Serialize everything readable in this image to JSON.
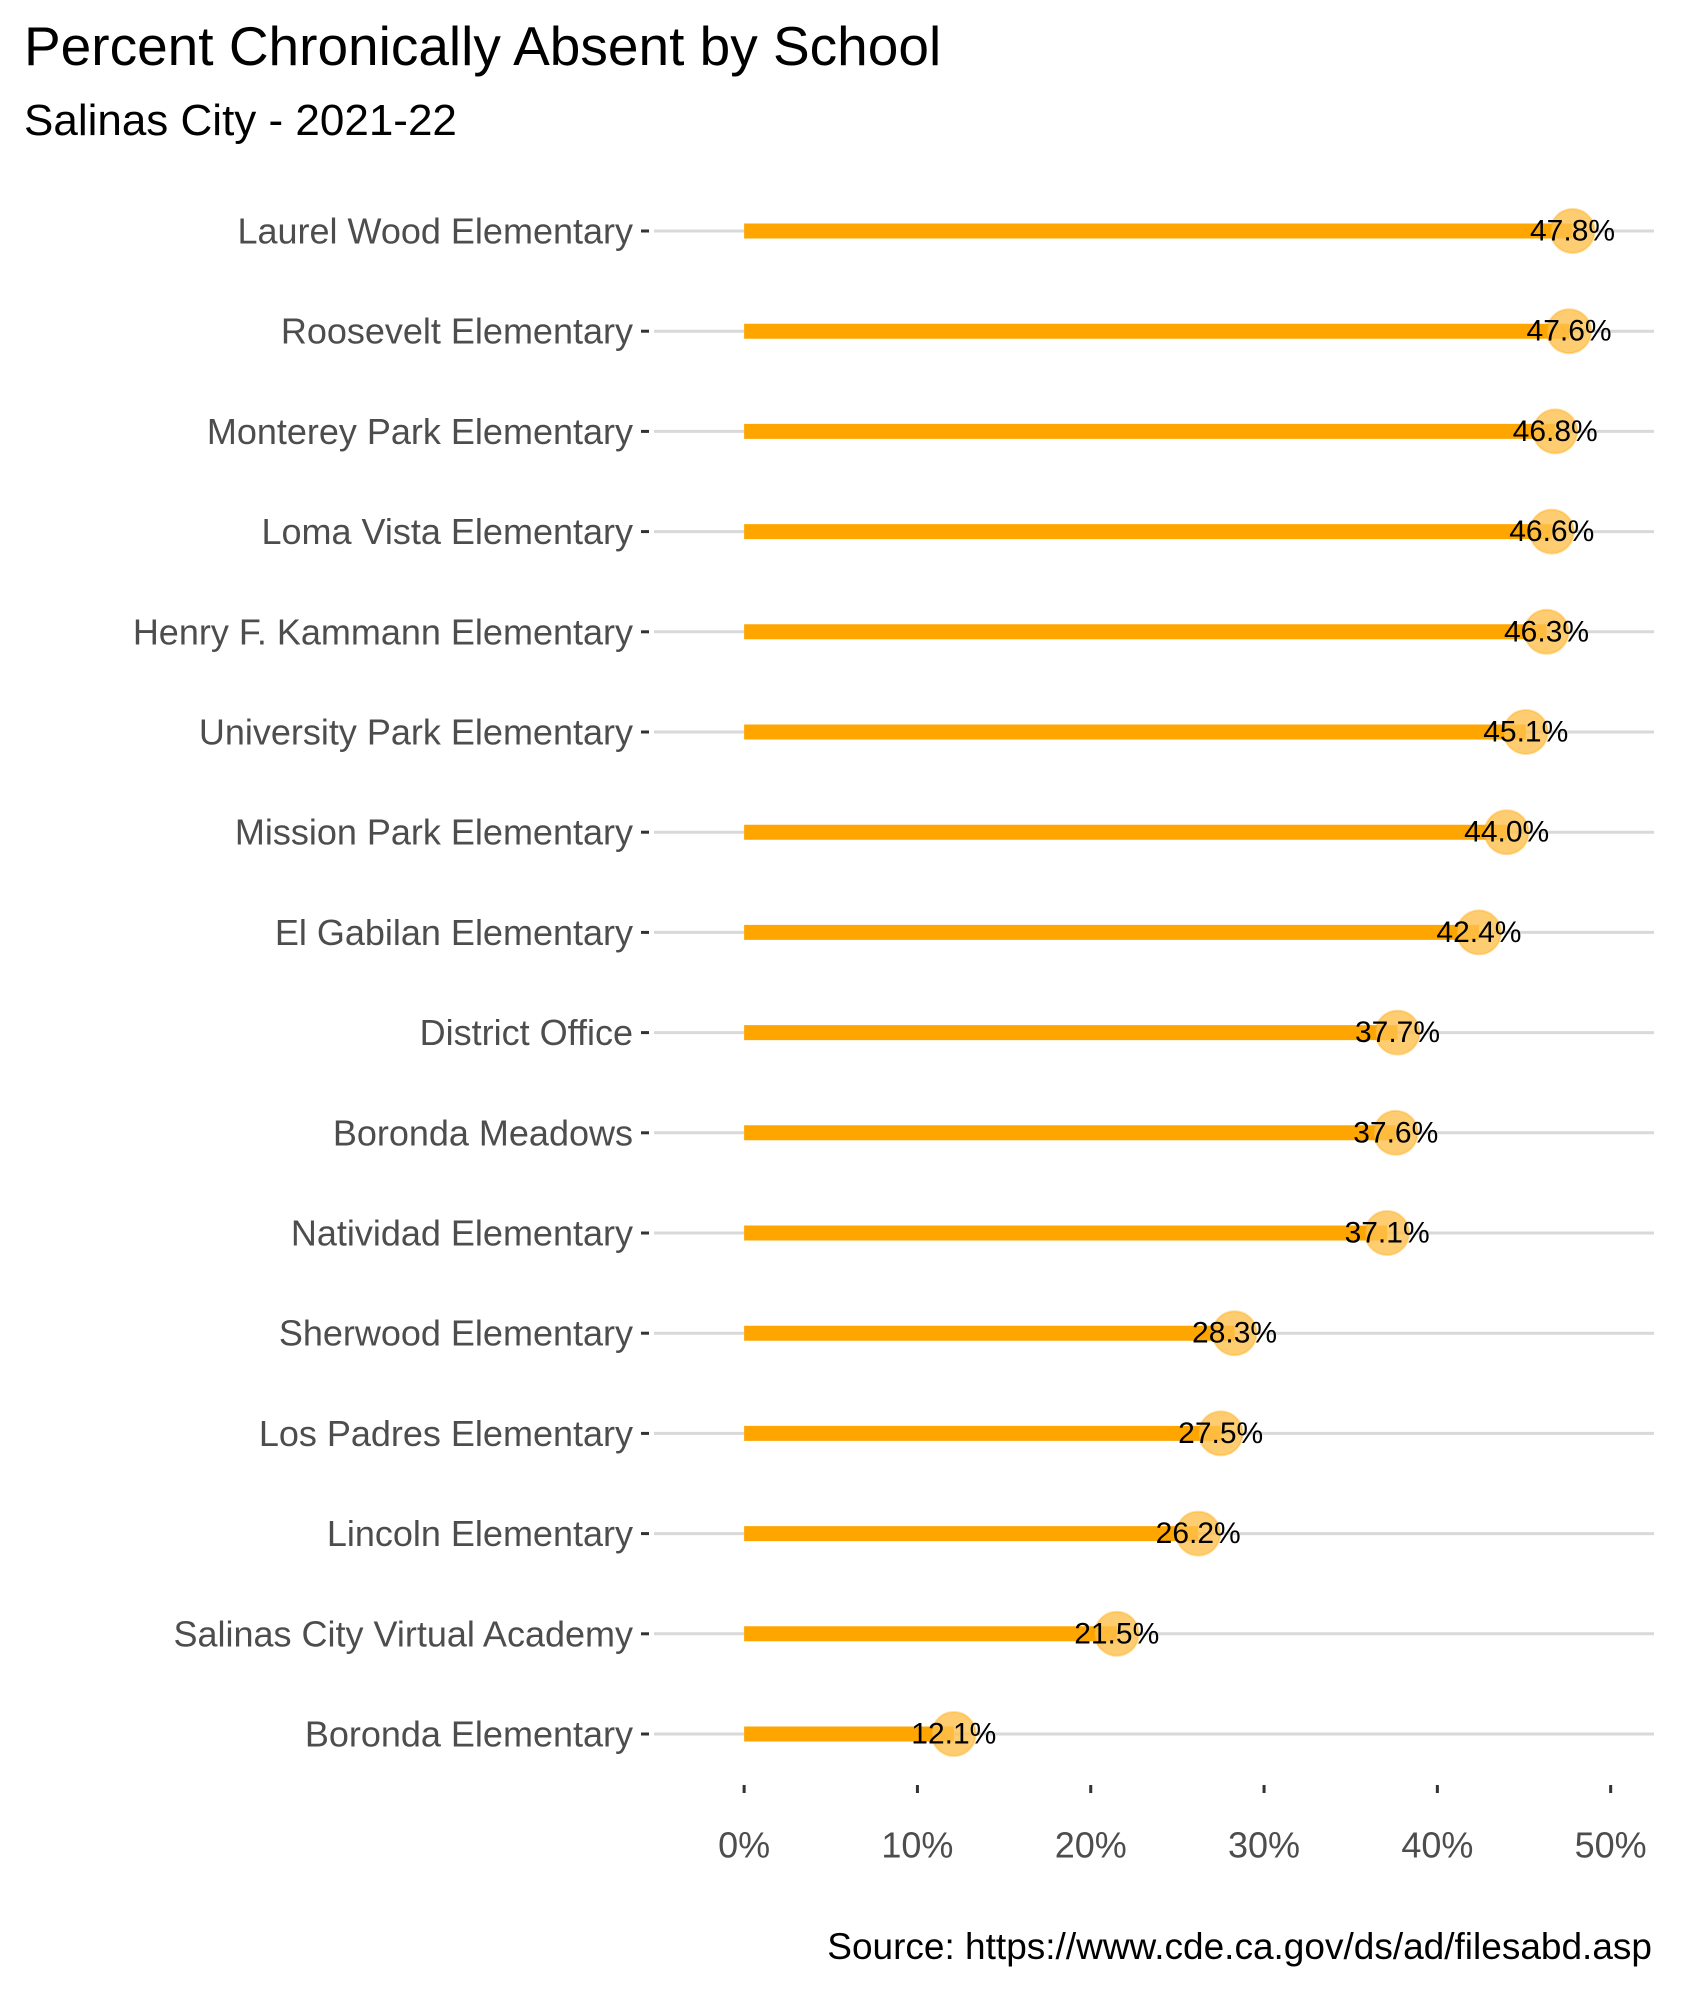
{
  "chart_data": {
    "type": "bar",
    "title": "Percent Chronically Absent by School",
    "subtitle": "Salinas City - 2021-22",
    "caption": "Source: https://www.cde.ca.gov/ds/ad/filesabd.asp",
    "xlabel": "",
    "ylabel": "",
    "orientation": "horizontal",
    "style": "lollipop",
    "categories": [
      "Laurel Wood Elementary",
      "Roosevelt Elementary",
      "Monterey Park Elementary",
      "Loma Vista Elementary",
      "Henry F. Kammann Elementary",
      "University Park Elementary",
      "Mission Park Elementary",
      "El Gabilan Elementary",
      "District Office",
      "Boronda Meadows",
      "Natividad Elementary",
      "Sherwood Elementary",
      "Los Padres Elementary",
      "Lincoln Elementary",
      "Salinas City Virtual Academy",
      "Boronda Elementary"
    ],
    "values": [
      47.8,
      47.6,
      46.8,
      46.6,
      46.3,
      45.1,
      44.0,
      42.4,
      37.7,
      37.6,
      37.1,
      28.3,
      27.5,
      26.2,
      21.5,
      12.1
    ],
    "data_labels": [
      "47.8%",
      "47.6%",
      "46.8%",
      "46.6%",
      "46.3%",
      "45.1%",
      "44.0%",
      "42.4%",
      "37.7%",
      "37.6%",
      "37.1%",
      "28.3%",
      "27.5%",
      "26.2%",
      "21.5%",
      "12.1%"
    ],
    "x_ticks": [
      0,
      10,
      20,
      30,
      40,
      50
    ],
    "x_tick_labels": [
      "0%",
      "10%",
      "20%",
      "30%",
      "40%",
      "50%"
    ],
    "xlim": [
      -5.2,
      52.5
    ],
    "grid": "horizontal major",
    "colors": {
      "bar": "#FFA500",
      "point": "#FFC04D",
      "gridline": "#d9d9d9",
      "axis_text": "#4d4d4d"
    }
  }
}
